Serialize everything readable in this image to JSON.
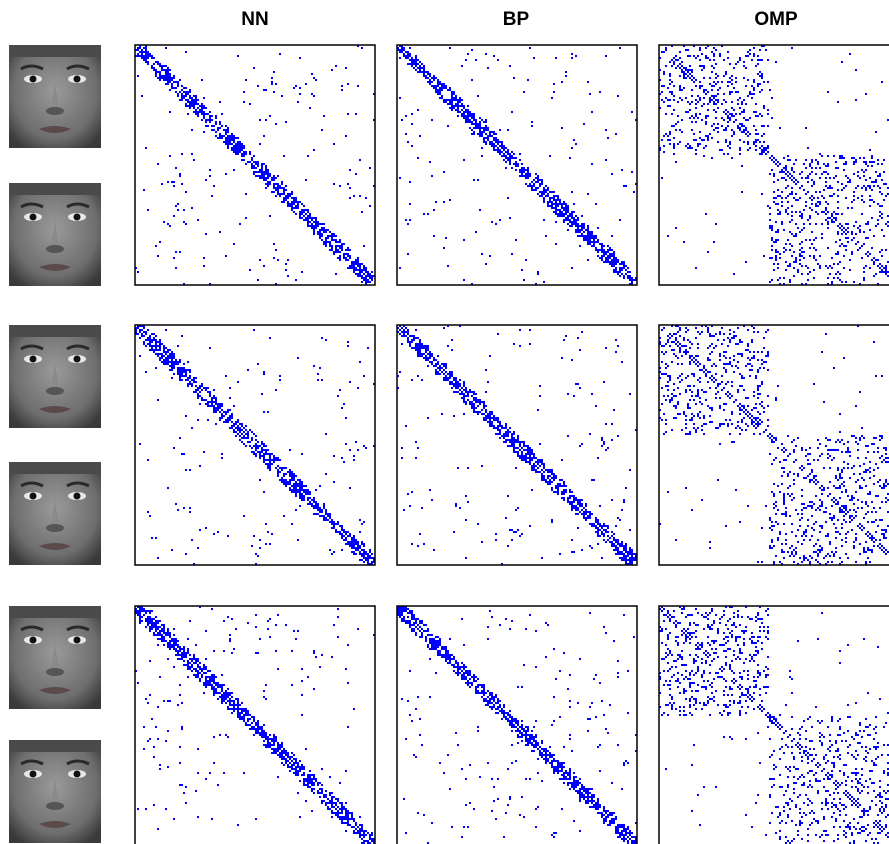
{
  "column_titles": [
    "NN",
    "BP",
    "OMP"
  ]
}
